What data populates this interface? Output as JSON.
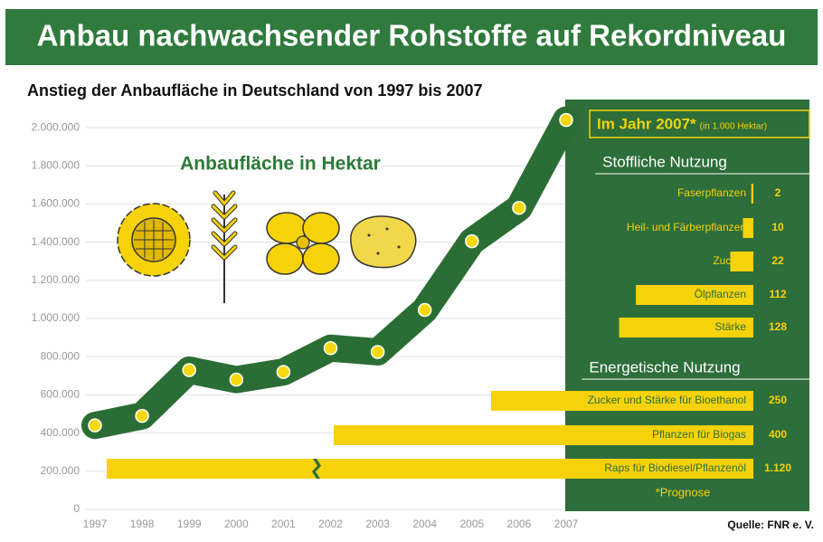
{
  "title": "Anbau nachwachsender Rohstoffe auf Rekordniveau",
  "chart_data": [
    {
      "type": "line",
      "title": "Anstieg der Anbaufläche in Deutschland von 1997 bis 2007",
      "annotation": "Anbaufläche in Hektar",
      "categories": [
        "1997",
        "1998",
        "1999",
        "2000",
        "2001",
        "2002",
        "2003",
        "2004",
        "2005",
        "2006",
        "2007"
      ],
      "values": [
        440000,
        490000,
        730000,
        680000,
        720000,
        845000,
        825000,
        1045000,
        1405000,
        1580000,
        2040000
      ],
      "color": "#2b6e35",
      "marker_color": "#f5d90f",
      "ylim": [
        0,
        2100000
      ],
      "yticks": [
        0,
        {
          "value": 200000,
          "label": "200.000"
        },
        {
          "value": 400000,
          "label": "400.000"
        },
        {
          "value": 600000,
          "label": "600.000"
        },
        {
          "value": 800000,
          "label": "800.000"
        },
        {
          "value": 1000000,
          "label": "1.000.000"
        },
        {
          "value": 1200000,
          "label": "1.200.000"
        },
        {
          "value": 1400000,
          "label": "1.400.000"
        },
        {
          "value": 1600000,
          "label": "1.600.000"
        },
        {
          "value": 1800000,
          "label": "1.800.000"
        },
        {
          "value": 2000000,
          "label": "2.000.000"
        }
      ],
      "grid": true
    },
    {
      "type": "hbar",
      "title": "Im Jahr 2007*",
      "subtitle": "(in 1.000 Hektar)",
      "color": "#f5d20a",
      "groups": [
        {
          "name": "Stoffliche Nutzung",
          "categories": [
            "Faserpflanzen",
            "Heil- und Färberpflanzen",
            "Zucker",
            "Ölpflanzen",
            "Stärke"
          ],
          "values": [
            2,
            10,
            22,
            112,
            128
          ]
        },
        {
          "name": "Energetische Nutzung",
          "categories": [
            "Zucker und Stärke für Bioethanol",
            "Pflanzen für Biogas",
            "Raps für Biodiesel/Pflanzenöl"
          ],
          "values": [
            250,
            400,
            1120
          ],
          "value_labels": [
            "250",
            "400",
            "1.120"
          ]
        }
      ]
    }
  ],
  "footnote": "*Prognose",
  "source": "Quelle: FNR e. V."
}
